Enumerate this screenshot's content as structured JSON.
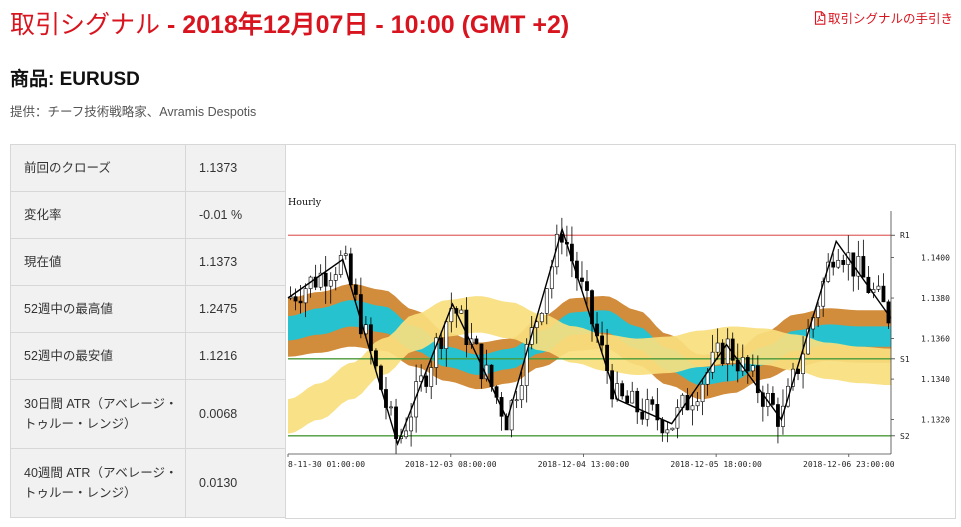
{
  "header": {
    "title_prefix": "取引シグナル",
    "title_bold": " - 2018年12月07日 - 10:00 (GMT +2)",
    "guide_link": "取引シグナルの手引き"
  },
  "product": {
    "label": "商品: EURUSD"
  },
  "provider": "提供：チーフ技術戦略家、Avramis Despotis",
  "stats": [
    {
      "label": "前回のクローズ",
      "value": "1.1373"
    },
    {
      "label": "変化率",
      "value": "-0.01 %"
    },
    {
      "label": "現在値",
      "value": "1.1373"
    },
    {
      "label": "52週中の最高値",
      "value": "1.2475"
    },
    {
      "label": "52週中の最安値",
      "value": "1.1216"
    },
    {
      "label": "30日間 ATR（アベレージ・トゥルー・レンジ）",
      "value": "0.0068"
    },
    {
      "label": "40週間 ATR（アベレージ・トゥルー・レンジ）",
      "value": "0.0130"
    }
  ],
  "chart_data": {
    "type": "line",
    "title": "Hourly",
    "x_tick_labels": [
      "8-11-30 01:00:00",
      "2018-12-03 08:00:00",
      "2018-12-04 13:00:00",
      "2018-12-05 18:00:00",
      "2018-12-06 23:00:00"
    ],
    "y_tick_labels": [
      "1.1320",
      "1.1340",
      "1.1360",
      "1.1380",
      "1.1400"
    ],
    "ylim": [
      1.1305,
      1.142
    ],
    "levels": [
      {
        "name": "R1",
        "value": 1.1411,
        "color": "#e06666"
      },
      {
        "name": "S1",
        "value": 1.135,
        "color": "#4a9a3a"
      },
      {
        "name": "S2",
        "value": 1.1312,
        "color": "#4a9a3a"
      }
    ],
    "zigzag": [
      1.138,
      1.1399,
      1.1308,
      1.1377,
      1.132,
      1.1414,
      1.133,
      1.1318,
      1.1357,
      1.132,
      1.1408,
      1.137
    ],
    "bands": {
      "outer_top": [
        1.138,
        1.1383,
        1.1387,
        1.1384,
        1.1374,
        1.1363,
        1.1358,
        1.136,
        1.1371,
        1.138,
        1.1381,
        1.1374,
        1.1362,
        1.1352,
        1.1353,
        1.1363,
        1.1372,
        1.1375,
        1.1374,
        1.1374
      ],
      "inner_top": [
        1.1371,
        1.1375,
        1.1379,
        1.1376,
        1.1366,
        1.1356,
        1.1352,
        1.1355,
        1.1364,
        1.1373,
        1.1374,
        1.1366,
        1.1355,
        1.1346,
        1.1347,
        1.1356,
        1.1364,
        1.1367,
        1.1366,
        1.1366
      ],
      "inner_bottom": [
        1.1359,
        1.1362,
        1.1366,
        1.1363,
        1.1354,
        1.1346,
        1.1342,
        1.1345,
        1.1353,
        1.1362,
        1.1363,
        1.1355,
        1.1344,
        1.1337,
        1.1339,
        1.1347,
        1.1354,
        1.1357,
        1.1356,
        1.1356
      ],
      "outer_bottom": [
        1.1351,
        1.1353,
        1.1356,
        1.1354,
        1.1346,
        1.1339,
        1.1335,
        1.1338,
        1.1346,
        1.1354,
        1.1355,
        1.1347,
        1.1337,
        1.133,
        1.1333,
        1.134,
        1.1346,
        1.1349,
        1.1348,
        1.1348
      ],
      "yellow_top": [
        1.133,
        1.1338,
        1.1348,
        1.136,
        1.1372,
        1.1379,
        1.1381,
        1.1378,
        1.1372,
        1.1366,
        1.1362,
        1.136,
        1.1361,
        1.1364,
        1.1366,
        1.1365,
        1.1362,
        1.1358,
        1.1356,
        1.1355
      ],
      "yellow_bottom": [
        1.1313,
        1.132,
        1.133,
        1.1342,
        1.1354,
        1.1361,
        1.1363,
        1.136,
        1.1354,
        1.1348,
        1.1344,
        1.1342,
        1.1343,
        1.1346,
        1.1348,
        1.1347,
        1.1344,
        1.134,
        1.1338,
        1.1337
      ]
    },
    "colors": {
      "band_outer": "#cf8632",
      "band_inner": "#26c2cf",
      "band_yellow": "#f8de7e",
      "candle_up": "#ffffff",
      "candle_down": "#000000",
      "zigzag": "#000000"
    }
  }
}
